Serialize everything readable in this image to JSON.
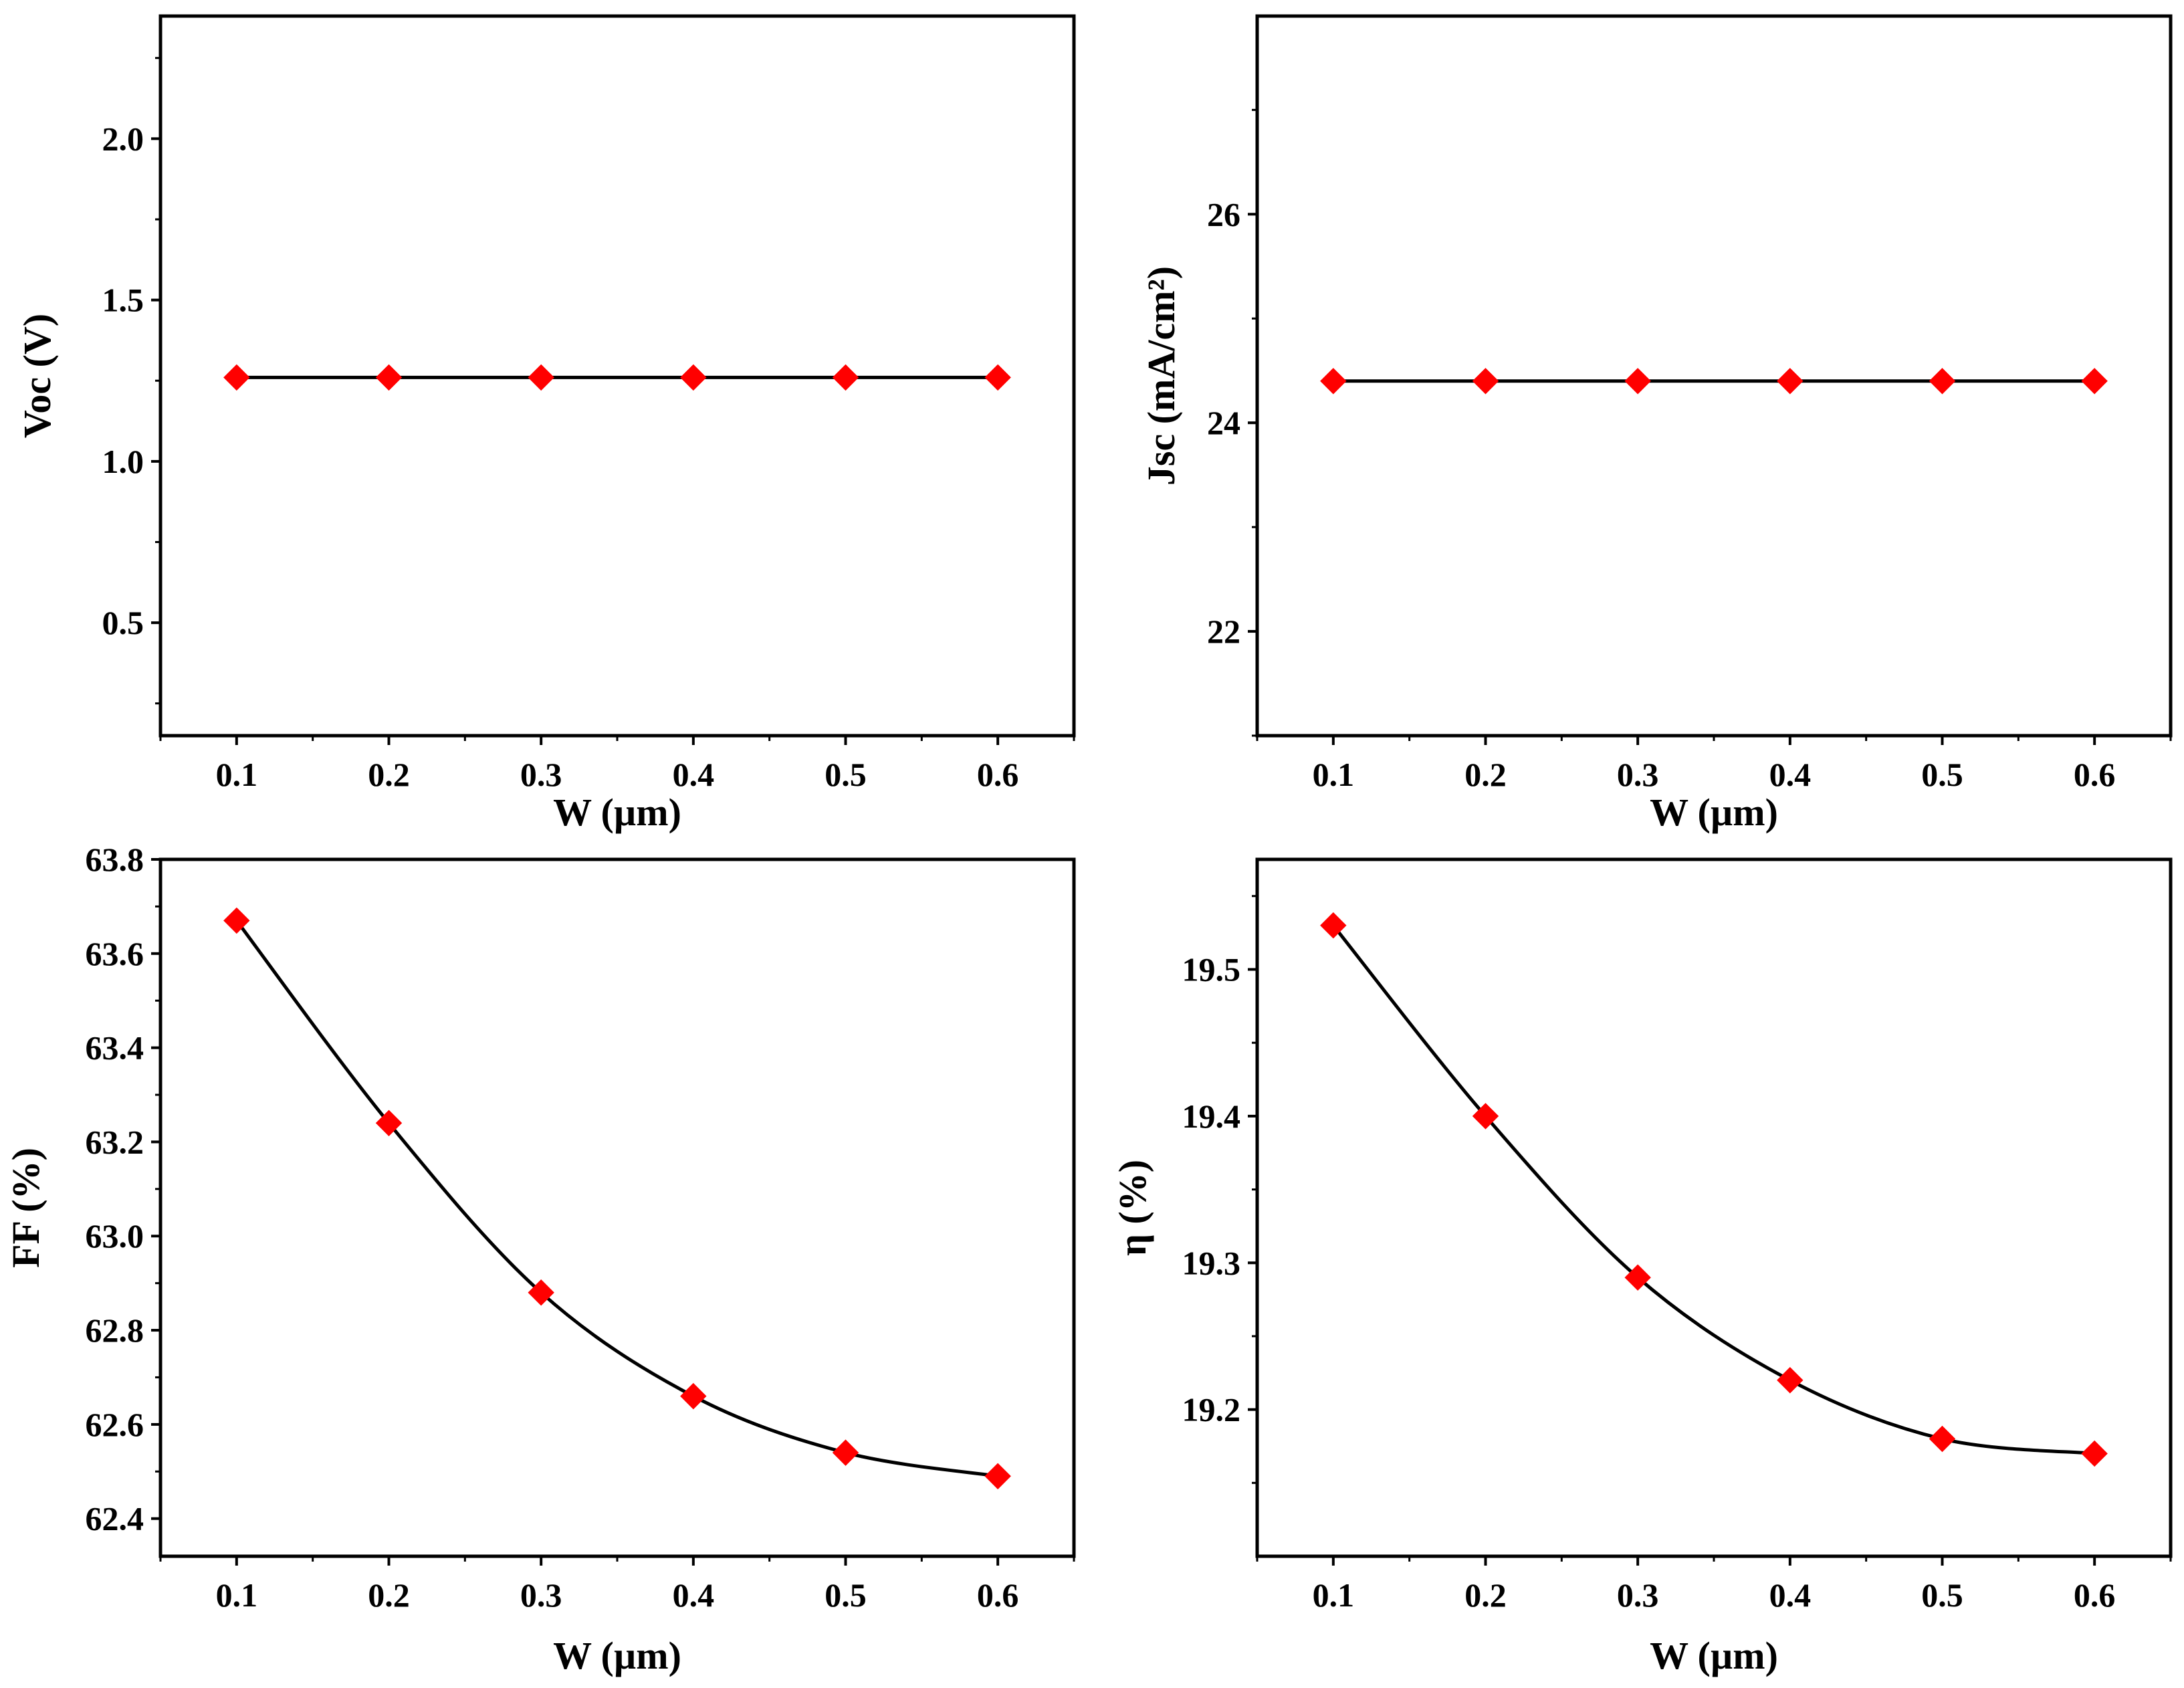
{
  "colors": {
    "marker": "#ff0000",
    "line": "#000000",
    "axis": "#000000"
  },
  "chart_data": [
    {
      "id": "voc",
      "type": "line",
      "marker": "diamond",
      "curve": "straight",
      "x": [
        0.1,
        0.2,
        0.3,
        0.4,
        0.5,
        0.6
      ],
      "y": [
        1.26,
        1.26,
        1.26,
        1.26,
        1.26,
        1.26
      ],
      "xlabel": "W (µm)",
      "ylabel": "Voc (V)",
      "xlim": [
        0.05,
        0.65
      ],
      "ylim": [
        0.15,
        2.38
      ],
      "xticks": [
        "0.1",
        "0.2",
        "0.3",
        "0.4",
        "0.5",
        "0.6"
      ],
      "yticks": [
        "0.5",
        "1.0",
        "1.5",
        "2.0"
      ]
    },
    {
      "id": "jsc",
      "type": "line",
      "marker": "diamond",
      "curve": "straight",
      "x": [
        0.1,
        0.2,
        0.3,
        0.4,
        0.5,
        0.6
      ],
      "y": [
        24.4,
        24.4,
        24.4,
        24.4,
        24.4,
        24.4
      ],
      "xlabel": "W (µm)",
      "ylabel": "Jsc (mA/cm²)",
      "xlim": [
        0.05,
        0.65
      ],
      "ylim": [
        21.0,
        27.9
      ],
      "xticks": [
        "0.1",
        "0.2",
        "0.3",
        "0.4",
        "0.5",
        "0.6"
      ],
      "yticks": [
        "22",
        "24",
        "26"
      ]
    },
    {
      "id": "ff",
      "type": "line",
      "marker": "diamond",
      "curve": "smooth",
      "x": [
        0.1,
        0.2,
        0.3,
        0.4,
        0.5,
        0.6
      ],
      "y": [
        63.67,
        63.24,
        62.88,
        62.66,
        62.54,
        62.49
      ],
      "xlabel": "W (µm)",
      "ylabel": "FF (%)",
      "xlim": [
        0.05,
        0.65
      ],
      "ylim": [
        62.32,
        63.8
      ],
      "xticks": [
        "0.1",
        "0.2",
        "0.3",
        "0.4",
        "0.5",
        "0.6"
      ],
      "yticks": [
        "62.4",
        "62.6",
        "62.8",
        "63.0",
        "63.2",
        "63.4",
        "63.6",
        "63.8"
      ]
    },
    {
      "id": "eta",
      "type": "line",
      "marker": "diamond",
      "curve": "smooth",
      "x": [
        0.1,
        0.2,
        0.3,
        0.4,
        0.5,
        0.6
      ],
      "y": [
        19.53,
        19.4,
        19.29,
        19.22,
        19.18,
        19.17
      ],
      "xlabel": "W (µm)",
      "ylabel": "η (%)",
      "xlim": [
        0.05,
        0.65
      ],
      "ylim": [
        19.1,
        19.575
      ],
      "xticks": [
        "0.1",
        "0.2",
        "0.3",
        "0.4",
        "0.5",
        "0.6"
      ],
      "yticks": [
        "19.2",
        "19.3",
        "19.4",
        "19.5"
      ]
    }
  ]
}
